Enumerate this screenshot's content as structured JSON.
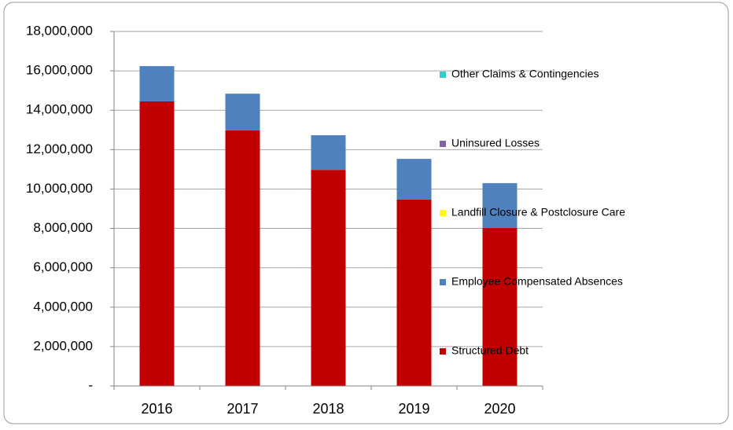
{
  "chart_data": {
    "type": "stacked_bar",
    "categories": [
      "2016",
      "2017",
      "2018",
      "2019",
      "2020"
    ],
    "series": [
      {
        "name": "Structured Debt",
        "color": "#c00000",
        "values": [
          14450000,
          12970000,
          10970000,
          9460000,
          8020000
        ]
      },
      {
        "name": "Employee Compensated Absences",
        "color": "#4f81bd",
        "values": [
          1790000,
          1870000,
          1760000,
          2070000,
          2280000
        ]
      },
      {
        "name": "Landfill Closure & Postclosure Care",
        "color": "#ffff00",
        "values": [
          0,
          0,
          0,
          0,
          0
        ]
      },
      {
        "name": "Uninsured Losses",
        "color": "#8064a2",
        "values": [
          0,
          0,
          0,
          0,
          0
        ]
      },
      {
        "name": "Other Claims & Contingencies",
        "color": "#33cccc",
        "values": [
          0,
          0,
          0,
          0,
          0
        ]
      }
    ],
    "ylim": [
      0,
      18000000
    ],
    "yticks": [
      {
        "value": 0,
        "label": "-"
      },
      {
        "value": 2000000,
        "label": "2,000,000"
      },
      {
        "value": 4000000,
        "label": "4,000,000"
      },
      {
        "value": 6000000,
        "label": "6,000,000"
      },
      {
        "value": 8000000,
        "label": "8,000,000"
      },
      {
        "value": 10000000,
        "label": "10,000,000"
      },
      {
        "value": 12000000,
        "label": "12,000,000"
      },
      {
        "value": 14000000,
        "label": "14,000,000"
      },
      {
        "value": 16000000,
        "label": "16,000,000"
      },
      {
        "value": 18000000,
        "label": "18,000,000"
      }
    ],
    "grid": true
  }
}
